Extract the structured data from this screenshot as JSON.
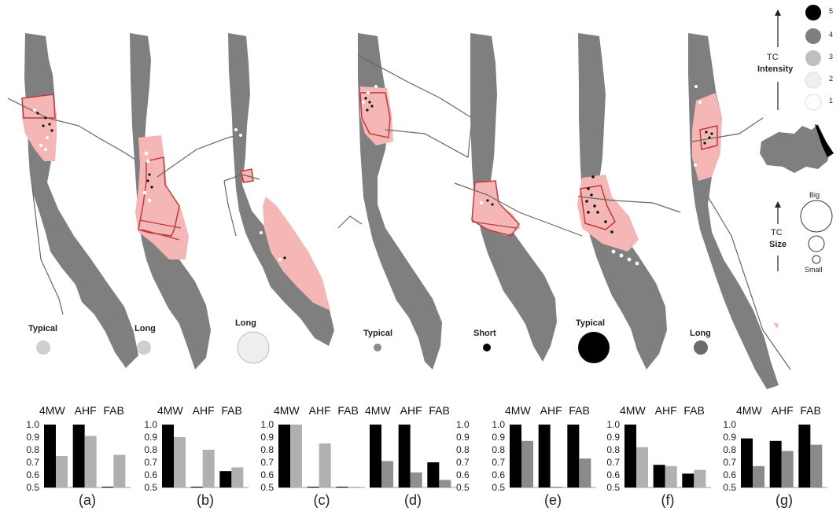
{
  "maps": [
    {
      "id": "a",
      "duration_label": "Typical",
      "size_marker": "small",
      "marker_color": "#cfcfcf"
    },
    {
      "id": "b",
      "duration_label": "Long",
      "size_marker": "small",
      "marker_color": "#cfcfcf"
    },
    {
      "id": "c",
      "duration_label": "Long",
      "size_marker": "big",
      "marker_color": "#eeeeee"
    },
    {
      "id": "d",
      "duration_label": "Typical",
      "size_marker": "tiny",
      "marker_color": "#8a8a8a"
    },
    {
      "id": "e",
      "duration_label": "Short",
      "size_marker": "tiny",
      "marker_color": "#000000"
    },
    {
      "id": "f",
      "duration_label": "Typical",
      "size_marker": "big",
      "marker_color": "#000000"
    },
    {
      "id": "g",
      "duration_label": "Long",
      "size_marker": "small",
      "marker_color": "#6e6a6a"
    }
  ],
  "legend": {
    "intensity_title": "TC",
    "intensity_label": "Intensity",
    "intensity_levels": [
      {
        "value": "5",
        "color": "#000000"
      },
      {
        "value": "4",
        "color": "#7f7f7f"
      },
      {
        "value": "3",
        "color": "#bfbfbf"
      },
      {
        "value": "2",
        "color": "#f0f0f0"
      },
      {
        "value": "1",
        "color": "#ffffff"
      }
    ],
    "size_title": "TC",
    "size_label": "Size",
    "size_big": "Big",
    "size_small": "Small"
  },
  "chart_data": [
    {
      "type": "bar",
      "panel": "(a)",
      "categories": [
        "4MW",
        "AHF",
        "FAB"
      ],
      "ylim": [
        0.5,
        1.0
      ],
      "yticks": [
        "1.0",
        "0.9",
        "0.8",
        "0.7",
        "0.6",
        "0.5"
      ],
      "series": [
        {
          "color": "#000000",
          "values": [
            1.0,
            1.0,
            0.5
          ]
        },
        {
          "color": "#b0b0b0",
          "values": [
            0.75,
            0.91,
            0.76
          ]
        }
      ]
    },
    {
      "type": "bar",
      "panel": "(b)",
      "categories": [
        "4MW",
        "AHF",
        "FAB"
      ],
      "ylim": [
        0.5,
        1.0
      ],
      "yticks": [
        "1.0",
        "0.9",
        "0.8",
        "0.7",
        "0.6",
        "0.5"
      ],
      "series": [
        {
          "color": "#000000",
          "values": [
            1.0,
            0.5,
            0.63
          ]
        },
        {
          "color": "#b0b0b0",
          "values": [
            0.9,
            0.8,
            0.66
          ]
        }
      ]
    },
    {
      "type": "bar",
      "panel": "(c)",
      "categories": [
        "4MW",
        "AHF",
        "FAB"
      ],
      "ylim": [
        0.5,
        1.0
      ],
      "yticks": [
        "1.0",
        "0.9",
        "0.8",
        "0.7",
        "0.6",
        "0.5"
      ],
      "series": [
        {
          "color": "#000000",
          "values": [
            1.0,
            0.5,
            0.5
          ]
        },
        {
          "color": "#b0b0b0",
          "values": [
            1.0,
            0.85,
            0.5
          ]
        }
      ]
    },
    {
      "type": "bar",
      "panel": "(d)",
      "categories": [
        "4MW",
        "AHF",
        "FAB"
      ],
      "ylim": [
        0.5,
        1.0
      ],
      "yticks": [
        "1.0",
        "0.9",
        "0.8",
        "0.7",
        "0.6",
        "0.5"
      ],
      "series": [
        {
          "color": "#000000",
          "values": [
            1.0,
            1.0,
            0.7
          ]
        },
        {
          "color": "#8f8f8f",
          "values": [
            0.71,
            0.62,
            0.56
          ]
        }
      ]
    },
    {
      "type": "bar",
      "panel": "(e)",
      "categories": [
        "4MW",
        "AHF",
        "FAB"
      ],
      "ylim": [
        0.5,
        1.0
      ],
      "yticks": [
        "1.0",
        "0.9",
        "0.8",
        "0.7",
        "0.6",
        "0.5"
      ],
      "series": [
        {
          "color": "#000000",
          "values": [
            1.0,
            1.0,
            1.0
          ]
        },
        {
          "color": "#8a8a8a",
          "values": [
            0.87,
            0.5,
            0.73
          ]
        }
      ]
    },
    {
      "type": "bar",
      "panel": "(f)",
      "categories": [
        "4MW",
        "AHF",
        "FAB"
      ],
      "ylim": [
        0.5,
        1.0
      ],
      "yticks": [
        "1.0",
        "0.9",
        "0.8",
        "0.7",
        "0.6",
        "0.5"
      ],
      "series": [
        {
          "color": "#000000",
          "values": [
            1.0,
            0.68,
            0.61
          ]
        },
        {
          "color": "#b0b0b0",
          "values": [
            0.82,
            0.67,
            0.64
          ]
        }
      ]
    },
    {
      "type": "bar",
      "panel": "(g)",
      "categories": [
        "4MW",
        "AHF",
        "FAB"
      ],
      "ylim": [
        0.5,
        1.0
      ],
      "yticks": [
        "1.0",
        "0.9",
        "0.8",
        "0.7",
        "0.6",
        "0.5"
      ],
      "series": [
        {
          "color": "#000000",
          "values": [
            0.89,
            0.87,
            1.0
          ]
        },
        {
          "color": "#8a8a8a",
          "values": [
            0.67,
            0.79,
            0.84
          ]
        }
      ]
    }
  ]
}
